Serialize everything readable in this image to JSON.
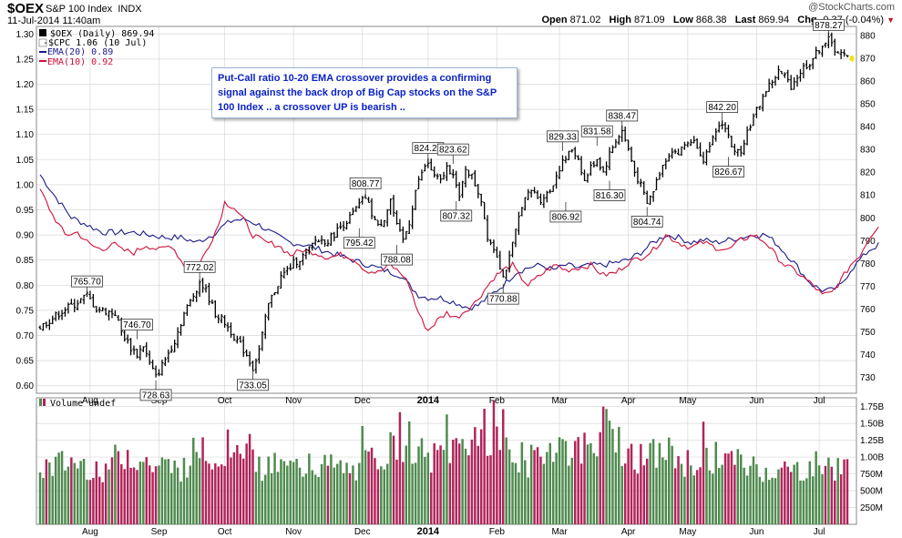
{
  "header": {
    "symbol": "$OEX",
    "name": "S&P 100 Index",
    "exchange": "INDX",
    "datetime": "11-Jul-2014 11:40am",
    "brand": "@StockCharts.com",
    "open_label": "Open",
    "open": "871.02",
    "high_label": "High",
    "high": "871.09",
    "low_label": "Low",
    "low": "868.38",
    "last_label": "Last",
    "last": "869.94",
    "chg_label": "Chg",
    "chg": "-0.37 (-0.04%)",
    "chg_arrow": "▼"
  },
  "legend": {
    "oex": "$OEX (Daily) 869.94",
    "cpc": "-$CPC 1.06 (10 Jul)",
    "ema20": "EMA(20) 0.89",
    "ema10": "EMA(10) 0.92",
    "volume": "Volume undef"
  },
  "annotation": "Put-Call ratio 10-20 EMA crossover provides a confirming signal against the back drop of Big Cap stocks on the S&P 100 Index .. a crossover UP is bearish ..",
  "chart_data": {
    "type": "line",
    "title": "$OEX S&P 100 Index (Daily) with Put-Call ratio EMAs",
    "colors": {
      "price": "#000000",
      "ema20": "#1a1a8c",
      "ema10": "#d0103a",
      "vol_up": "#4e8a4e",
      "vol_down": "#b0245a",
      "grid": "#d8d8d8"
    },
    "x_labels": [
      "Aug",
      "Sep",
      "Oct",
      "Nov",
      "Dec",
      "2014",
      "Feb",
      "Mar",
      "Apr",
      "May",
      "Jun",
      "Jul"
    ],
    "x_label_days": [
      16,
      38,
      59,
      81,
      103,
      124,
      146,
      166,
      188,
      207,
      229,
      249
    ],
    "n_days": 258,
    "left_axis": {
      "ticks": [
        "1.30",
        "1.25",
        "1.20",
        "1.15",
        "1.10",
        "1.05",
        "1.00",
        "0.95",
        "0.90",
        "0.85",
        "0.80",
        "0.75",
        "0.70",
        "0.65",
        "0.60"
      ],
      "range": [
        0.585,
        1.315
      ]
    },
    "right_axis": {
      "ticks": [
        "880",
        "870",
        "860",
        "850",
        "840",
        "830",
        "820",
        "810",
        "800",
        "790",
        "780",
        "770",
        "760",
        "750",
        "740",
        "730"
      ],
      "range": [
        723,
        884
      ]
    },
    "volume_axis": {
      "ticks": [
        "1.75B",
        "1.50B",
        "1.25B",
        "1.00B",
        "750M",
        "500M",
        "250M"
      ],
      "range": [
        0,
        1.88
      ]
    },
    "price_anchors": [
      [
        0,
        752
      ],
      [
        4,
        756
      ],
      [
        8,
        760
      ],
      [
        11,
        762
      ],
      [
        15,
        766
      ],
      [
        18,
        760
      ],
      [
        24,
        758
      ],
      [
        26,
        750
      ],
      [
        29,
        743
      ],
      [
        31,
        740
      ],
      [
        33,
        744
      ],
      [
        35,
        736
      ],
      [
        37,
        730
      ],
      [
        40,
        738
      ],
      [
        43,
        746
      ],
      [
        46,
        758
      ],
      [
        49,
        766
      ],
      [
        51,
        772
      ],
      [
        53,
        768
      ],
      [
        56,
        758
      ],
      [
        59,
        754
      ],
      [
        62,
        748
      ],
      [
        64,
        744
      ],
      [
        66,
        740
      ],
      [
        68,
        734
      ],
      [
        70,
        742
      ],
      [
        73,
        762
      ],
      [
        77,
        774
      ],
      [
        81,
        780
      ],
      [
        85,
        784
      ],
      [
        88,
        790
      ],
      [
        92,
        790
      ],
      [
        96,
        796
      ],
      [
        99,
        800
      ],
      [
        101,
        804
      ],
      [
        104,
        809
      ],
      [
        106,
        802
      ],
      [
        108,
        796
      ],
      [
        110,
        800
      ],
      [
        112,
        808
      ],
      [
        114,
        796
      ],
      [
        116,
        790
      ],
      [
        118,
        798
      ],
      [
        120,
        812
      ],
      [
        122,
        820
      ],
      [
        124,
        824
      ],
      [
        126,
        818
      ],
      [
        128,
        816
      ],
      [
        130,
        822
      ],
      [
        132,
        820
      ],
      [
        134,
        808
      ],
      [
        136,
        822
      ],
      [
        138,
        818
      ],
      [
        141,
        808
      ],
      [
        143,
        792
      ],
      [
        146,
        784
      ],
      [
        148,
        774
      ],
      [
        150,
        782
      ],
      [
        152,
        794
      ],
      [
        154,
        806
      ],
      [
        157,
        812
      ],
      [
        160,
        808
      ],
      [
        163,
        812
      ],
      [
        166,
        822
      ],
      [
        168,
        826
      ],
      [
        170,
        830
      ],
      [
        172,
        826
      ],
      [
        174,
        816
      ],
      [
        176,
        822
      ],
      [
        178,
        826
      ],
      [
        180,
        820
      ],
      [
        182,
        828
      ],
      [
        184,
        834
      ],
      [
        186,
        838
      ],
      [
        188,
        830
      ],
      [
        190,
        820
      ],
      [
        192,
        814
      ],
      [
        194,
        806
      ],
      [
        196,
        812
      ],
      [
        198,
        820
      ],
      [
        200,
        826
      ],
      [
        202,
        830
      ],
      [
        204,
        828
      ],
      [
        206,
        832
      ],
      [
        208,
        834
      ],
      [
        210,
        832
      ],
      [
        212,
        826
      ],
      [
        214,
        830
      ],
      [
        216,
        838
      ],
      [
        218,
        842
      ],
      [
        220,
        836
      ],
      [
        222,
        828
      ],
      [
        224,
        830
      ],
      [
        226,
        838
      ],
      [
        228,
        844
      ],
      [
        230,
        850
      ],
      [
        232,
        856
      ],
      [
        234,
        860
      ],
      [
        236,
        864
      ],
      [
        238,
        862
      ],
      [
        240,
        858
      ],
      [
        242,
        862
      ],
      [
        244,
        866
      ],
      [
        246,
        868
      ],
      [
        248,
        872
      ],
      [
        250,
        876
      ],
      [
        252,
        878
      ],
      [
        254,
        874
      ],
      [
        256,
        872
      ],
      [
        258,
        870
      ]
    ],
    "ema20_anchors": [
      [
        0,
        1.02
      ],
      [
        5,
        0.975
      ],
      [
        10,
        0.935
      ],
      [
        15,
        0.92
      ],
      [
        20,
        0.905
      ],
      [
        25,
        0.905
      ],
      [
        30,
        0.905
      ],
      [
        35,
        0.9
      ],
      [
        40,
        0.895
      ],
      [
        45,
        0.895
      ],
      [
        50,
        0.885
      ],
      [
        55,
        0.9
      ],
      [
        59,
        0.92
      ],
      [
        62,
        0.93
      ],
      [
        66,
        0.93
      ],
      [
        70,
        0.92
      ],
      [
        75,
        0.9
      ],
      [
        80,
        0.885
      ],
      [
        85,
        0.88
      ],
      [
        90,
        0.87
      ],
      [
        95,
        0.86
      ],
      [
        100,
        0.85
      ],
      [
        105,
        0.84
      ],
      [
        110,
        0.83
      ],
      [
        115,
        0.82
      ],
      [
        118,
        0.8
      ],
      [
        121,
        0.78
      ],
      [
        124,
        0.775
      ],
      [
        128,
        0.775
      ],
      [
        133,
        0.765
      ],
      [
        137,
        0.755
      ],
      [
        140,
        0.76
      ],
      [
        144,
        0.78
      ],
      [
        148,
        0.8
      ],
      [
        152,
        0.825
      ],
      [
        156,
        0.835
      ],
      [
        160,
        0.84
      ],
      [
        164,
        0.83
      ],
      [
        168,
        0.84
      ],
      [
        172,
        0.835
      ],
      [
        176,
        0.84
      ],
      [
        180,
        0.84
      ],
      [
        184,
        0.845
      ],
      [
        188,
        0.85
      ],
      [
        192,
        0.865
      ],
      [
        196,
        0.885
      ],
      [
        200,
        0.9
      ],
      [
        204,
        0.895
      ],
      [
        208,
        0.885
      ],
      [
        212,
        0.89
      ],
      [
        216,
        0.885
      ],
      [
        220,
        0.89
      ],
      [
        224,
        0.895
      ],
      [
        228,
        0.9
      ],
      [
        232,
        0.9
      ],
      [
        235,
        0.885
      ],
      [
        238,
        0.865
      ],
      [
        241,
        0.845
      ],
      [
        244,
        0.82
      ],
      [
        247,
        0.8
      ],
      [
        250,
        0.79
      ],
      [
        253,
        0.79
      ],
      [
        256,
        0.8
      ],
      [
        259,
        0.83
      ],
      [
        262,
        0.85
      ],
      [
        265,
        0.87
      ],
      [
        268,
        0.88
      ]
    ],
    "ema10_anchors": [
      [
        0,
        0.99
      ],
      [
        4,
        0.94
      ],
      [
        8,
        0.9
      ],
      [
        12,
        0.905
      ],
      [
        16,
        0.88
      ],
      [
        20,
        0.87
      ],
      [
        23,
        0.885
      ],
      [
        26,
        0.87
      ],
      [
        30,
        0.865
      ],
      [
        34,
        0.88
      ],
      [
        38,
        0.87
      ],
      [
        42,
        0.88
      ],
      [
        46,
        0.84
      ],
      [
        50,
        0.83
      ],
      [
        54,
        0.88
      ],
      [
        57,
        0.92
      ],
      [
        59,
        0.965
      ],
      [
        62,
        0.955
      ],
      [
        65,
        0.93
      ],
      [
        68,
        0.9
      ],
      [
        72,
        0.885
      ],
      [
        76,
        0.88
      ],
      [
        80,
        0.86
      ],
      [
        84,
        0.87
      ],
      [
        88,
        0.865
      ],
      [
        92,
        0.855
      ],
      [
        96,
        0.86
      ],
      [
        100,
        0.855
      ],
      [
        104,
        0.83
      ],
      [
        108,
        0.825
      ],
      [
        112,
        0.84
      ],
      [
        116,
        0.82
      ],
      [
        118,
        0.8
      ],
      [
        120,
        0.76
      ],
      [
        122,
        0.73
      ],
      [
        124,
        0.71
      ],
      [
        127,
        0.73
      ],
      [
        130,
        0.745
      ],
      [
        133,
        0.735
      ],
      [
        136,
        0.75
      ],
      [
        139,
        0.765
      ],
      [
        142,
        0.79
      ],
      [
        145,
        0.815
      ],
      [
        148,
        0.83
      ],
      [
        151,
        0.84
      ],
      [
        153,
        0.82
      ],
      [
        156,
        0.8
      ],
      [
        159,
        0.815
      ],
      [
        162,
        0.83
      ],
      [
        165,
        0.84
      ],
      [
        168,
        0.83
      ],
      [
        172,
        0.835
      ],
      [
        176,
        0.84
      ],
      [
        180,
        0.82
      ],
      [
        184,
        0.825
      ],
      [
        188,
        0.845
      ],
      [
        192,
        0.855
      ],
      [
        196,
        0.87
      ],
      [
        200,
        0.9
      ],
      [
        204,
        0.885
      ],
      [
        208,
        0.875
      ],
      [
        212,
        0.885
      ],
      [
        216,
        0.875
      ],
      [
        220,
        0.87
      ],
      [
        224,
        0.89
      ],
      [
        228,
        0.9
      ],
      [
        232,
        0.885
      ],
      [
        235,
        0.86
      ],
      [
        238,
        0.84
      ],
      [
        241,
        0.83
      ],
      [
        244,
        0.815
      ],
      [
        247,
        0.8
      ],
      [
        250,
        0.78
      ],
      [
        253,
        0.785
      ],
      [
        256,
        0.81
      ],
      [
        259,
        0.84
      ],
      [
        262,
        0.86
      ],
      [
        265,
        0.895
      ],
      [
        268,
        0.92
      ]
    ],
    "callouts": [
      {
        "day": 15,
        "value": 765.7,
        "label": "765.70",
        "pos": "above"
      },
      {
        "day": 31,
        "value": 746.7,
        "label": "746.70",
        "pos": "above"
      },
      {
        "day": 37,
        "value": 728.63,
        "label": "728.63",
        "pos": "below"
      },
      {
        "day": 51,
        "value": 772.02,
        "label": "772.02",
        "pos": "above"
      },
      {
        "day": 68,
        "value": 733.05,
        "label": "733.05",
        "pos": "below"
      },
      {
        "day": 104,
        "value": 808.77,
        "label": "808.77",
        "pos": "above"
      },
      {
        "day": 102,
        "value": 795.42,
        "label": "795.42",
        "pos": "below"
      },
      {
        "day": 114,
        "value": 788.08,
        "label": "788.08",
        "pos": "below"
      },
      {
        "day": 124,
        "value": 824.21,
        "label": "824.21",
        "pos": "above"
      },
      {
        "day": 132,
        "value": 823.62,
        "label": "823.62",
        "pos": "above"
      },
      {
        "day": 133,
        "value": 807.32,
        "label": "807.32",
        "pos": "below"
      },
      {
        "day": 148,
        "value": 770.88,
        "label": "770.88",
        "pos": "below"
      },
      {
        "day": 167,
        "value": 829.33,
        "label": "829.33",
        "pos": "above"
      },
      {
        "day": 178,
        "value": 831.58,
        "label": "831.58",
        "pos": "above"
      },
      {
        "day": 168,
        "value": 806.92,
        "label": "806.92",
        "pos": "below"
      },
      {
        "day": 182,
        "value": 816.3,
        "label": "816.30",
        "pos": "below"
      },
      {
        "day": 186,
        "value": 838.47,
        "label": "838.47",
        "pos": "above"
      },
      {
        "day": 194,
        "value": 804.74,
        "label": "804.74",
        "pos": "below"
      },
      {
        "day": 218,
        "value": 842.2,
        "label": "842.20",
        "pos": "above"
      },
      {
        "day": 220,
        "value": 826.67,
        "label": "826.67",
        "pos": "below"
      },
      {
        "day": 252,
        "value": 878.27,
        "label": "878.27",
        "pos": "above"
      }
    ],
    "volume_anchors": [
      [
        0,
        0.85
      ],
      [
        10,
        0.95
      ],
      [
        20,
        0.85
      ],
      [
        28,
        1.1
      ],
      [
        35,
        0.9
      ],
      [
        45,
        0.85
      ],
      [
        52,
        1.25
      ],
      [
        58,
        0.95
      ],
      [
        62,
        1.45
      ],
      [
        70,
        0.9
      ],
      [
        80,
        0.85
      ],
      [
        90,
        0.9
      ],
      [
        100,
        0.8
      ],
      [
        110,
        1.1
      ],
      [
        118,
        1.3
      ],
      [
        124,
        0.95
      ],
      [
        132,
        1.15
      ],
      [
        137,
        1.3
      ],
      [
        141,
        1.45
      ],
      [
        145,
        1.35
      ],
      [
        150,
        1.1
      ],
      [
        156,
        0.95
      ],
      [
        164,
        1.25
      ],
      [
        172,
        1.1
      ],
      [
        178,
        1.35
      ],
      [
        182,
        1.55
      ],
      [
        186,
        1.2
      ],
      [
        192,
        1.0
      ],
      [
        200,
        1.1
      ],
      [
        208,
        0.9
      ],
      [
        216,
        1.05
      ],
      [
        222,
        0.95
      ],
      [
        230,
        0.85
      ],
      [
        240,
        0.8
      ],
      [
        248,
        0.9
      ],
      [
        258,
        0.85
      ]
    ]
  }
}
